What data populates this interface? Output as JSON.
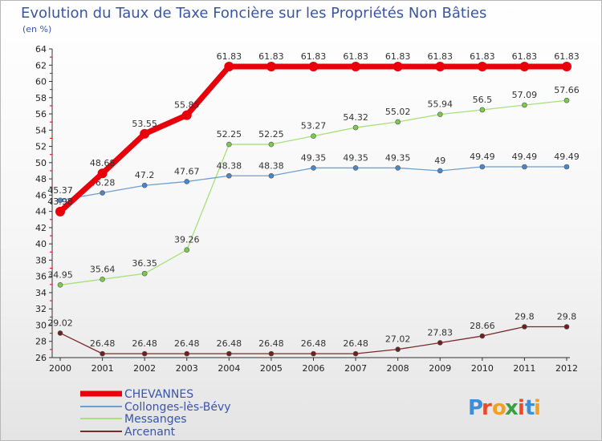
{
  "chart_data": {
    "type": "line",
    "title": "Evolution du Taux de Taxe Foncière sur les Propriétés Non Bâties",
    "subtitle": "(en %)",
    "xlabel": "",
    "ylabel": "",
    "x": [
      "2000",
      "2001",
      "2002",
      "2003",
      "2004",
      "2005",
      "2006",
      "2007",
      "2008",
      "2009",
      "2010",
      "2011",
      "2012"
    ],
    "ylim": [
      26,
      64
    ],
    "yticks": [
      26,
      28,
      30,
      32,
      34,
      36,
      38,
      40,
      42,
      44,
      46,
      48,
      50,
      52,
      54,
      56,
      58,
      60,
      62,
      64
    ],
    "grid": false,
    "legend_position": "bottom-left",
    "series": [
      {
        "name": "CHEVANNES",
        "color": "#e8000b",
        "marker_color": "#e8000b",
        "values": [
          43.98,
          48.68,
          53.55,
          55.85,
          61.83,
          61.83,
          61.83,
          61.83,
          61.83,
          61.83,
          61.83,
          61.83,
          61.83
        ],
        "labels": [
          "43.98",
          "48.68",
          "53.55",
          "55.85",
          "61.83",
          "61.83",
          "61.83",
          "61.83",
          "61.83",
          "61.83",
          "61.83",
          "61.83",
          "61.83"
        ]
      },
      {
        "name": "Collonges-lès-Bévy",
        "color": "#6d9fd0",
        "marker_color": "#4a86c8",
        "values": [
          45.37,
          46.28,
          47.2,
          47.67,
          48.38,
          48.38,
          49.35,
          49.35,
          49.35,
          49,
          49.49,
          49.49,
          49.49
        ],
        "labels": [
          "45.37",
          "46.28",
          "47.2",
          "47.67",
          "48.38",
          "48.38",
          "49.35",
          "49.35",
          "49.35",
          "49",
          "49.49",
          "49.49",
          "49.49"
        ]
      },
      {
        "name": "Messanges",
        "color": "#a8e07a",
        "marker_color": "#7cc850",
        "values": [
          34.95,
          35.64,
          36.35,
          39.26,
          52.25,
          52.25,
          53.27,
          54.32,
          55.02,
          55.94,
          56.5,
          57.09,
          57.66
        ],
        "labels": [
          "34.95",
          "35.64",
          "36.35",
          "39.26",
          "52.25",
          "52.25",
          "53.27",
          "54.32",
          "55.02",
          "55.94",
          "56.5",
          "57.09",
          "57.66"
        ]
      },
      {
        "name": "Arcenant",
        "color": "#7a2a2a",
        "marker_color": "#6e1f1f",
        "values": [
          29.02,
          26.48,
          26.48,
          26.48,
          26.48,
          26.48,
          26.48,
          26.48,
          27.02,
          27.83,
          28.66,
          29.8,
          29.8
        ],
        "labels": [
          "29.02",
          "26.48",
          "26.48",
          "26.48",
          "26.48",
          "26.48",
          "26.48",
          "26.48",
          "27.02",
          "27.83",
          "28.66",
          "29.8",
          "29.8"
        ]
      }
    ]
  },
  "logo": {
    "letters": [
      "P",
      "r",
      "o",
      "x",
      "i",
      "t",
      "i"
    ],
    "colors": [
      "#3a8fd8",
      "#e84a2a",
      "#f2a020",
      "#3aa040",
      "#e84a2a",
      "#3a8fd8",
      "#f2a020"
    ]
  }
}
